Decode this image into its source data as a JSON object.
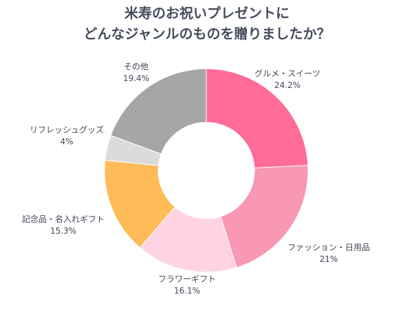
{
  "title_line1": "米寿のお祝いプレゼントに",
  "title_line2": "どんなジャンルのものを贈りましたか？",
  "chart_data": {
    "type": "pie",
    "style": "donut",
    "categories": [
      "グルメ・スイーツ",
      "ファッション・日用品",
      "フラワーギフト",
      "記念品・名入れギフト",
      "リフレッシュグッズ",
      "その他"
    ],
    "values": [
      24.2,
      21,
      16.1,
      15.3,
      4,
      19.4
    ],
    "value_labels": [
      "24.2%",
      "21%",
      "16.1%",
      "15.3%",
      "4%",
      "19.4%"
    ],
    "colors": [
      "#fe6c97",
      "#f898b5",
      "#ffd4e2",
      "#ffbb58",
      "#dbdbdb",
      "#a6a6a6"
    ],
    "start_angle": "top",
    "direction": "clockwise"
  }
}
